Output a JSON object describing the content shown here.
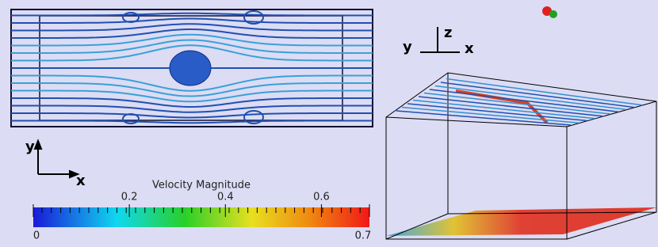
{
  "left_view": {
    "axes": {
      "y": "y",
      "x": "x"
    }
  },
  "right_view": {
    "axes": {
      "z": "z",
      "y": "y",
      "x": "x"
    }
  },
  "colorbar": {
    "title": "Velocity Magnitude",
    "range": [
      0,
      0.7
    ],
    "ticks": [
      0,
      0.2,
      0.4,
      0.6,
      0.7
    ]
  }
}
